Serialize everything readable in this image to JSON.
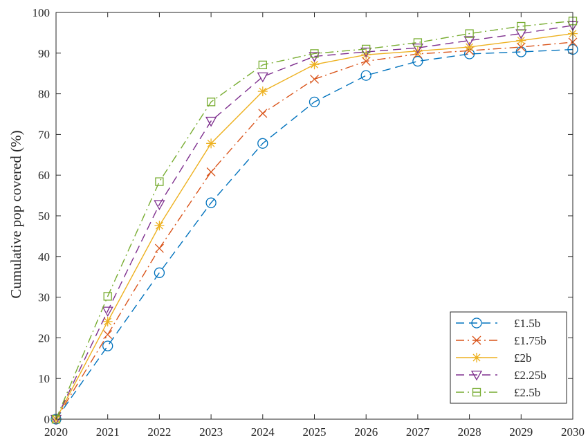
{
  "chart_data": {
    "type": "line",
    "title": "",
    "xlabel": "",
    "ylabel": "Cumulative pop covered (%)",
    "x": [
      2020,
      2021,
      2022,
      2023,
      2024,
      2025,
      2026,
      2027,
      2028,
      2029,
      2030
    ],
    "xlim": [
      2020,
      2030
    ],
    "ylim": [
      0,
      100
    ],
    "xticks": [
      "2020",
      "2021",
      "2022",
      "2023",
      "2024",
      "2025",
      "2026",
      "2027",
      "2028",
      "2029",
      "2030"
    ],
    "yticks": [
      "0",
      "10",
      "20",
      "30",
      "40",
      "50",
      "60",
      "70",
      "80",
      "90",
      "100"
    ],
    "grid": false,
    "legend_position": "bottom-right",
    "series": [
      {
        "name": "£1.5b",
        "color": "#0072BD",
        "marker": "circle",
        "dash": "dashed",
        "values": [
          0,
          18,
          36,
          53.2,
          67.8,
          78,
          84.5,
          88,
          89.8,
          90.3,
          90.9
        ]
      },
      {
        "name": "£1.75b",
        "color": "#D95319",
        "marker": "x",
        "dash": "dash-dot",
        "values": [
          0,
          20.8,
          42,
          60.8,
          75.2,
          83.6,
          88,
          89.8,
          90.6,
          91.5,
          92.7
        ]
      },
      {
        "name": "£2b",
        "color": "#EDB120",
        "marker": "asterisk",
        "dash": "solid",
        "values": [
          0,
          24,
          47.6,
          67.8,
          80.6,
          87.2,
          89.6,
          90.5,
          91.5,
          93.1,
          94.8
        ]
      },
      {
        "name": "£2.25b",
        "color": "#7E2F8E",
        "marker": "triangle-down",
        "dash": "dashed",
        "values": [
          0,
          26.6,
          52.8,
          73.3,
          84.2,
          89.2,
          90.3,
          91.3,
          93.1,
          94.8,
          96.8
        ]
      },
      {
        "name": "£2.5b",
        "color": "#77AC30",
        "marker": "square",
        "dash": "dash-dot",
        "values": [
          0,
          30.2,
          58.4,
          78,
          87.1,
          89.9,
          91,
          92.6,
          94.8,
          96.6,
          97.9
        ]
      }
    ]
  }
}
